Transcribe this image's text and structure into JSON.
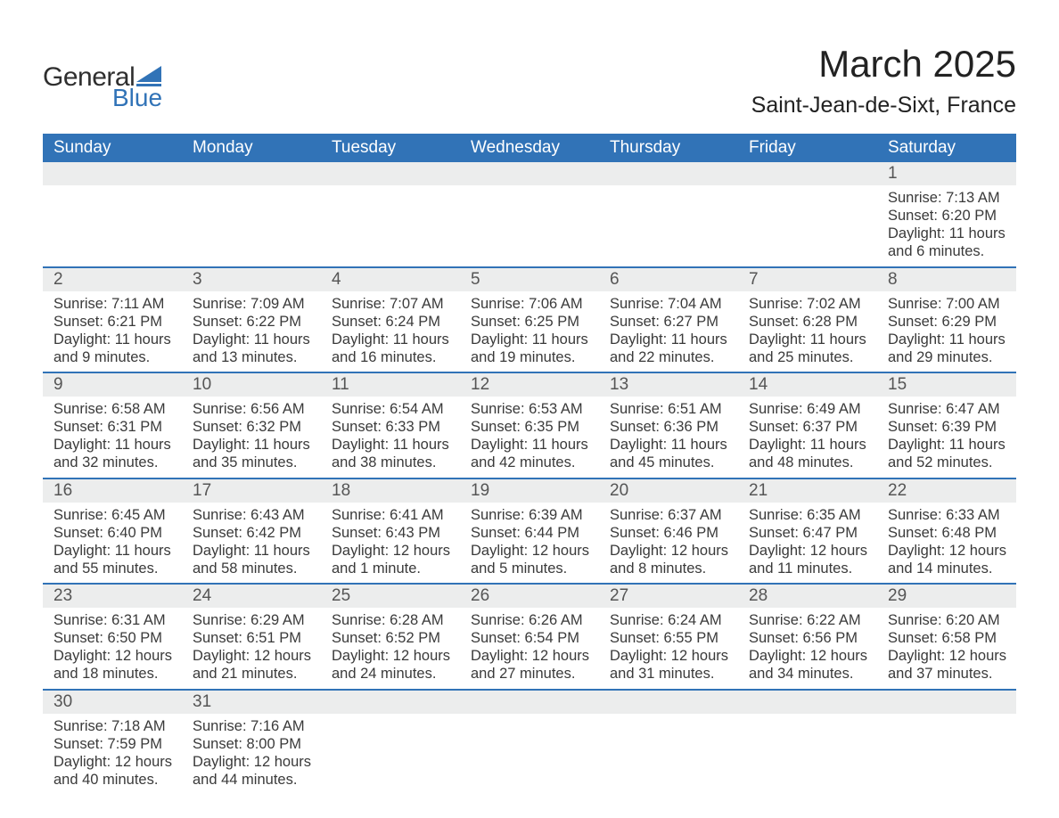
{
  "logo": {
    "text1": "General",
    "text2": "Blue",
    "accent_color": "#3173b7"
  },
  "title": "March 2025",
  "location": "Saint-Jean-de-Sixt, France",
  "colors": {
    "header_bg": "#3173b7",
    "header_text": "#ffffff",
    "daynum_bg": "#eceded",
    "row_border": "#3173b7",
    "body_text": "#3a3a3a"
  },
  "typography": {
    "title_fontsize": 42,
    "location_fontsize": 25,
    "header_fontsize": 19,
    "daynum_fontsize": 19,
    "body_fontsize": 16.5
  },
  "day_headers": [
    "Sunday",
    "Monday",
    "Tuesday",
    "Wednesday",
    "Thursday",
    "Friday",
    "Saturday"
  ],
  "grid": [
    [
      null,
      null,
      null,
      null,
      null,
      null,
      {
        "n": "1",
        "sunrise": "7:13 AM",
        "sunset": "6:20 PM",
        "daylight": "11 hours and 6 minutes."
      }
    ],
    [
      {
        "n": "2",
        "sunrise": "7:11 AM",
        "sunset": "6:21 PM",
        "daylight": "11 hours and 9 minutes."
      },
      {
        "n": "3",
        "sunrise": "7:09 AM",
        "sunset": "6:22 PM",
        "daylight": "11 hours and 13 minutes."
      },
      {
        "n": "4",
        "sunrise": "7:07 AM",
        "sunset": "6:24 PM",
        "daylight": "11 hours and 16 minutes."
      },
      {
        "n": "5",
        "sunrise": "7:06 AM",
        "sunset": "6:25 PM",
        "daylight": "11 hours and 19 minutes."
      },
      {
        "n": "6",
        "sunrise": "7:04 AM",
        "sunset": "6:27 PM",
        "daylight": "11 hours and 22 minutes."
      },
      {
        "n": "7",
        "sunrise": "7:02 AM",
        "sunset": "6:28 PM",
        "daylight": "11 hours and 25 minutes."
      },
      {
        "n": "8",
        "sunrise": "7:00 AM",
        "sunset": "6:29 PM",
        "daylight": "11 hours and 29 minutes."
      }
    ],
    [
      {
        "n": "9",
        "sunrise": "6:58 AM",
        "sunset": "6:31 PM",
        "daylight": "11 hours and 32 minutes."
      },
      {
        "n": "10",
        "sunrise": "6:56 AM",
        "sunset": "6:32 PM",
        "daylight": "11 hours and 35 minutes."
      },
      {
        "n": "11",
        "sunrise": "6:54 AM",
        "sunset": "6:33 PM",
        "daylight": "11 hours and 38 minutes."
      },
      {
        "n": "12",
        "sunrise": "6:53 AM",
        "sunset": "6:35 PM",
        "daylight": "11 hours and 42 minutes."
      },
      {
        "n": "13",
        "sunrise": "6:51 AM",
        "sunset": "6:36 PM",
        "daylight": "11 hours and 45 minutes."
      },
      {
        "n": "14",
        "sunrise": "6:49 AM",
        "sunset": "6:37 PM",
        "daylight": "11 hours and 48 minutes."
      },
      {
        "n": "15",
        "sunrise": "6:47 AM",
        "sunset": "6:39 PM",
        "daylight": "11 hours and 52 minutes."
      }
    ],
    [
      {
        "n": "16",
        "sunrise": "6:45 AM",
        "sunset": "6:40 PM",
        "daylight": "11 hours and 55 minutes."
      },
      {
        "n": "17",
        "sunrise": "6:43 AM",
        "sunset": "6:42 PM",
        "daylight": "11 hours and 58 minutes."
      },
      {
        "n": "18",
        "sunrise": "6:41 AM",
        "sunset": "6:43 PM",
        "daylight": "12 hours and 1 minute."
      },
      {
        "n": "19",
        "sunrise": "6:39 AM",
        "sunset": "6:44 PM",
        "daylight": "12 hours and 5 minutes."
      },
      {
        "n": "20",
        "sunrise": "6:37 AM",
        "sunset": "6:46 PM",
        "daylight": "12 hours and 8 minutes."
      },
      {
        "n": "21",
        "sunrise": "6:35 AM",
        "sunset": "6:47 PM",
        "daylight": "12 hours and 11 minutes."
      },
      {
        "n": "22",
        "sunrise": "6:33 AM",
        "sunset": "6:48 PM",
        "daylight": "12 hours and 14 minutes."
      }
    ],
    [
      {
        "n": "23",
        "sunrise": "6:31 AM",
        "sunset": "6:50 PM",
        "daylight": "12 hours and 18 minutes."
      },
      {
        "n": "24",
        "sunrise": "6:29 AM",
        "sunset": "6:51 PM",
        "daylight": "12 hours and 21 minutes."
      },
      {
        "n": "25",
        "sunrise": "6:28 AM",
        "sunset": "6:52 PM",
        "daylight": "12 hours and 24 minutes."
      },
      {
        "n": "26",
        "sunrise": "6:26 AM",
        "sunset": "6:54 PM",
        "daylight": "12 hours and 27 minutes."
      },
      {
        "n": "27",
        "sunrise": "6:24 AM",
        "sunset": "6:55 PM",
        "daylight": "12 hours and 31 minutes."
      },
      {
        "n": "28",
        "sunrise": "6:22 AM",
        "sunset": "6:56 PM",
        "daylight": "12 hours and 34 minutes."
      },
      {
        "n": "29",
        "sunrise": "6:20 AM",
        "sunset": "6:58 PM",
        "daylight": "12 hours and 37 minutes."
      }
    ],
    [
      {
        "n": "30",
        "sunrise": "7:18 AM",
        "sunset": "7:59 PM",
        "daylight": "12 hours and 40 minutes."
      },
      {
        "n": "31",
        "sunrise": "7:16 AM",
        "sunset": "8:00 PM",
        "daylight": "12 hours and 44 minutes."
      },
      null,
      null,
      null,
      null,
      null
    ]
  ],
  "labels": {
    "sunrise": "Sunrise: ",
    "sunset": "Sunset: ",
    "daylight": "Daylight: "
  }
}
